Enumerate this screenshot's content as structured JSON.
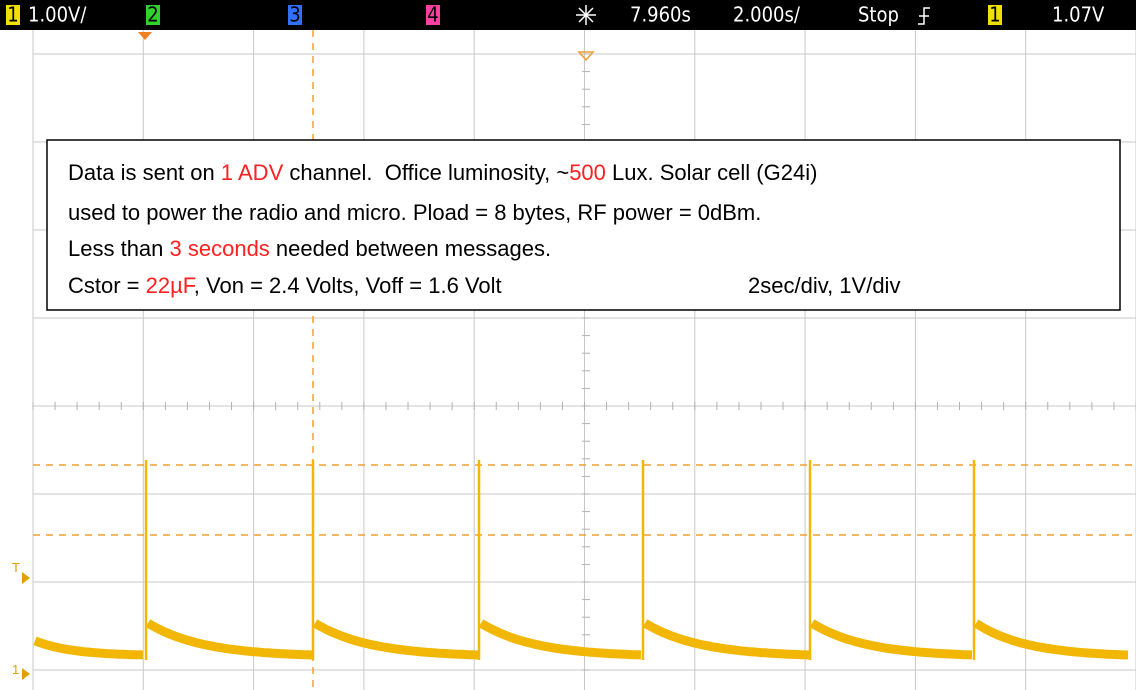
{
  "status_bar": {
    "ch1_label": "1",
    "ch1_scale": "1.00V/",
    "ch2_label": "2",
    "ch3_label": "3",
    "ch4_label": "4",
    "delay": "7.960s",
    "timebase": "2.000s/",
    "state": "Stop",
    "trigger_channel": "1",
    "trigger_level": "1.07V"
  },
  "markers": {
    "trigger": "T",
    "ground": "1"
  },
  "annotation": {
    "lines": [
      [
        {
          "text": "Data is sent on ",
          "highlight": false
        },
        {
          "text": "1 ADV",
          "highlight": true
        },
        {
          "text": " channel.  Office luminosity, ~",
          "highlight": false
        },
        {
          "text": "500",
          "highlight": true
        },
        {
          "text": " Lux. Solar cell (G24i)",
          "highlight": false
        }
      ],
      [
        {
          "text": "used to power the radio and micro. Pload = 8 bytes, RF power = 0dBm.",
          "highlight": false
        }
      ],
      [
        {
          "text": "Less than ",
          "highlight": false
        },
        {
          "text": "3 seconds",
          "highlight": true
        },
        {
          "text": " needed between messages.",
          "highlight": false
        }
      ],
      [
        {
          "text": "Cstor = ",
          "highlight": false
        },
        {
          "text": "22µF",
          "highlight": true
        },
        {
          "text": ", Von = 2.4 Volts, Voff = 1.6 Volt",
          "highlight": false
        }
      ]
    ],
    "scale_note": "2sec/div, 1V/div"
  }
}
